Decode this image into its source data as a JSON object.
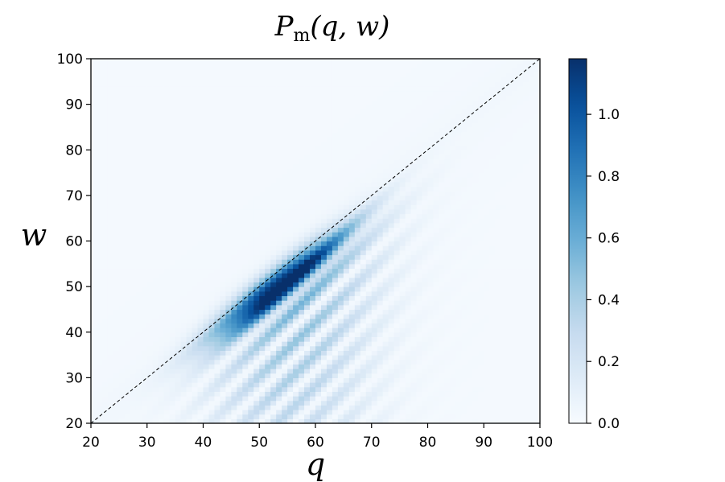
{
  "chart_data": {
    "type": "heatmap",
    "title": {
      "main": "P",
      "subscript": "m",
      "args": "(q, w)"
    },
    "xlabel": "q",
    "ylabel": "w",
    "xlim": [
      20,
      100
    ],
    "ylim": [
      20,
      100
    ],
    "x_ticks": [
      "20",
      "30",
      "40",
      "50",
      "60",
      "70",
      "80",
      "90",
      "100"
    ],
    "y_ticks": [
      "20",
      "30",
      "40",
      "50",
      "60",
      "70",
      "80",
      "90",
      "100"
    ],
    "colorbar": {
      "range": [
        0,
        1.18
      ],
      "ticks": [
        "0.0",
        "0.2",
        "0.4",
        "0.6",
        "0.8",
        "1.0"
      ],
      "colormap": "Blues"
    },
    "reference_line": {
      "from": [
        20,
        20
      ],
      "to": [
        100,
        100
      ],
      "style": "dashed"
    },
    "surface": {
      "peak_value": 1.15,
      "peak_at": {
        "q": 53,
        "w": 50
      },
      "band_center_offset": -3,
      "band_width": 4,
      "band_extent": {
        "q_center": 53,
        "q_width": 11
      },
      "fringe_values": [
        {
          "q": 50,
          "w": 43,
          "value": 0.7
        },
        {
          "q": 58,
          "w": 45,
          "value": 0.55
        },
        {
          "q": 58,
          "w": 35,
          "value": 0.35
        },
        {
          "q": 62,
          "w": 25,
          "value": 0.3
        },
        {
          "q": 70,
          "w": 35,
          "value": 0.2
        }
      ]
    },
    "grid": false
  }
}
